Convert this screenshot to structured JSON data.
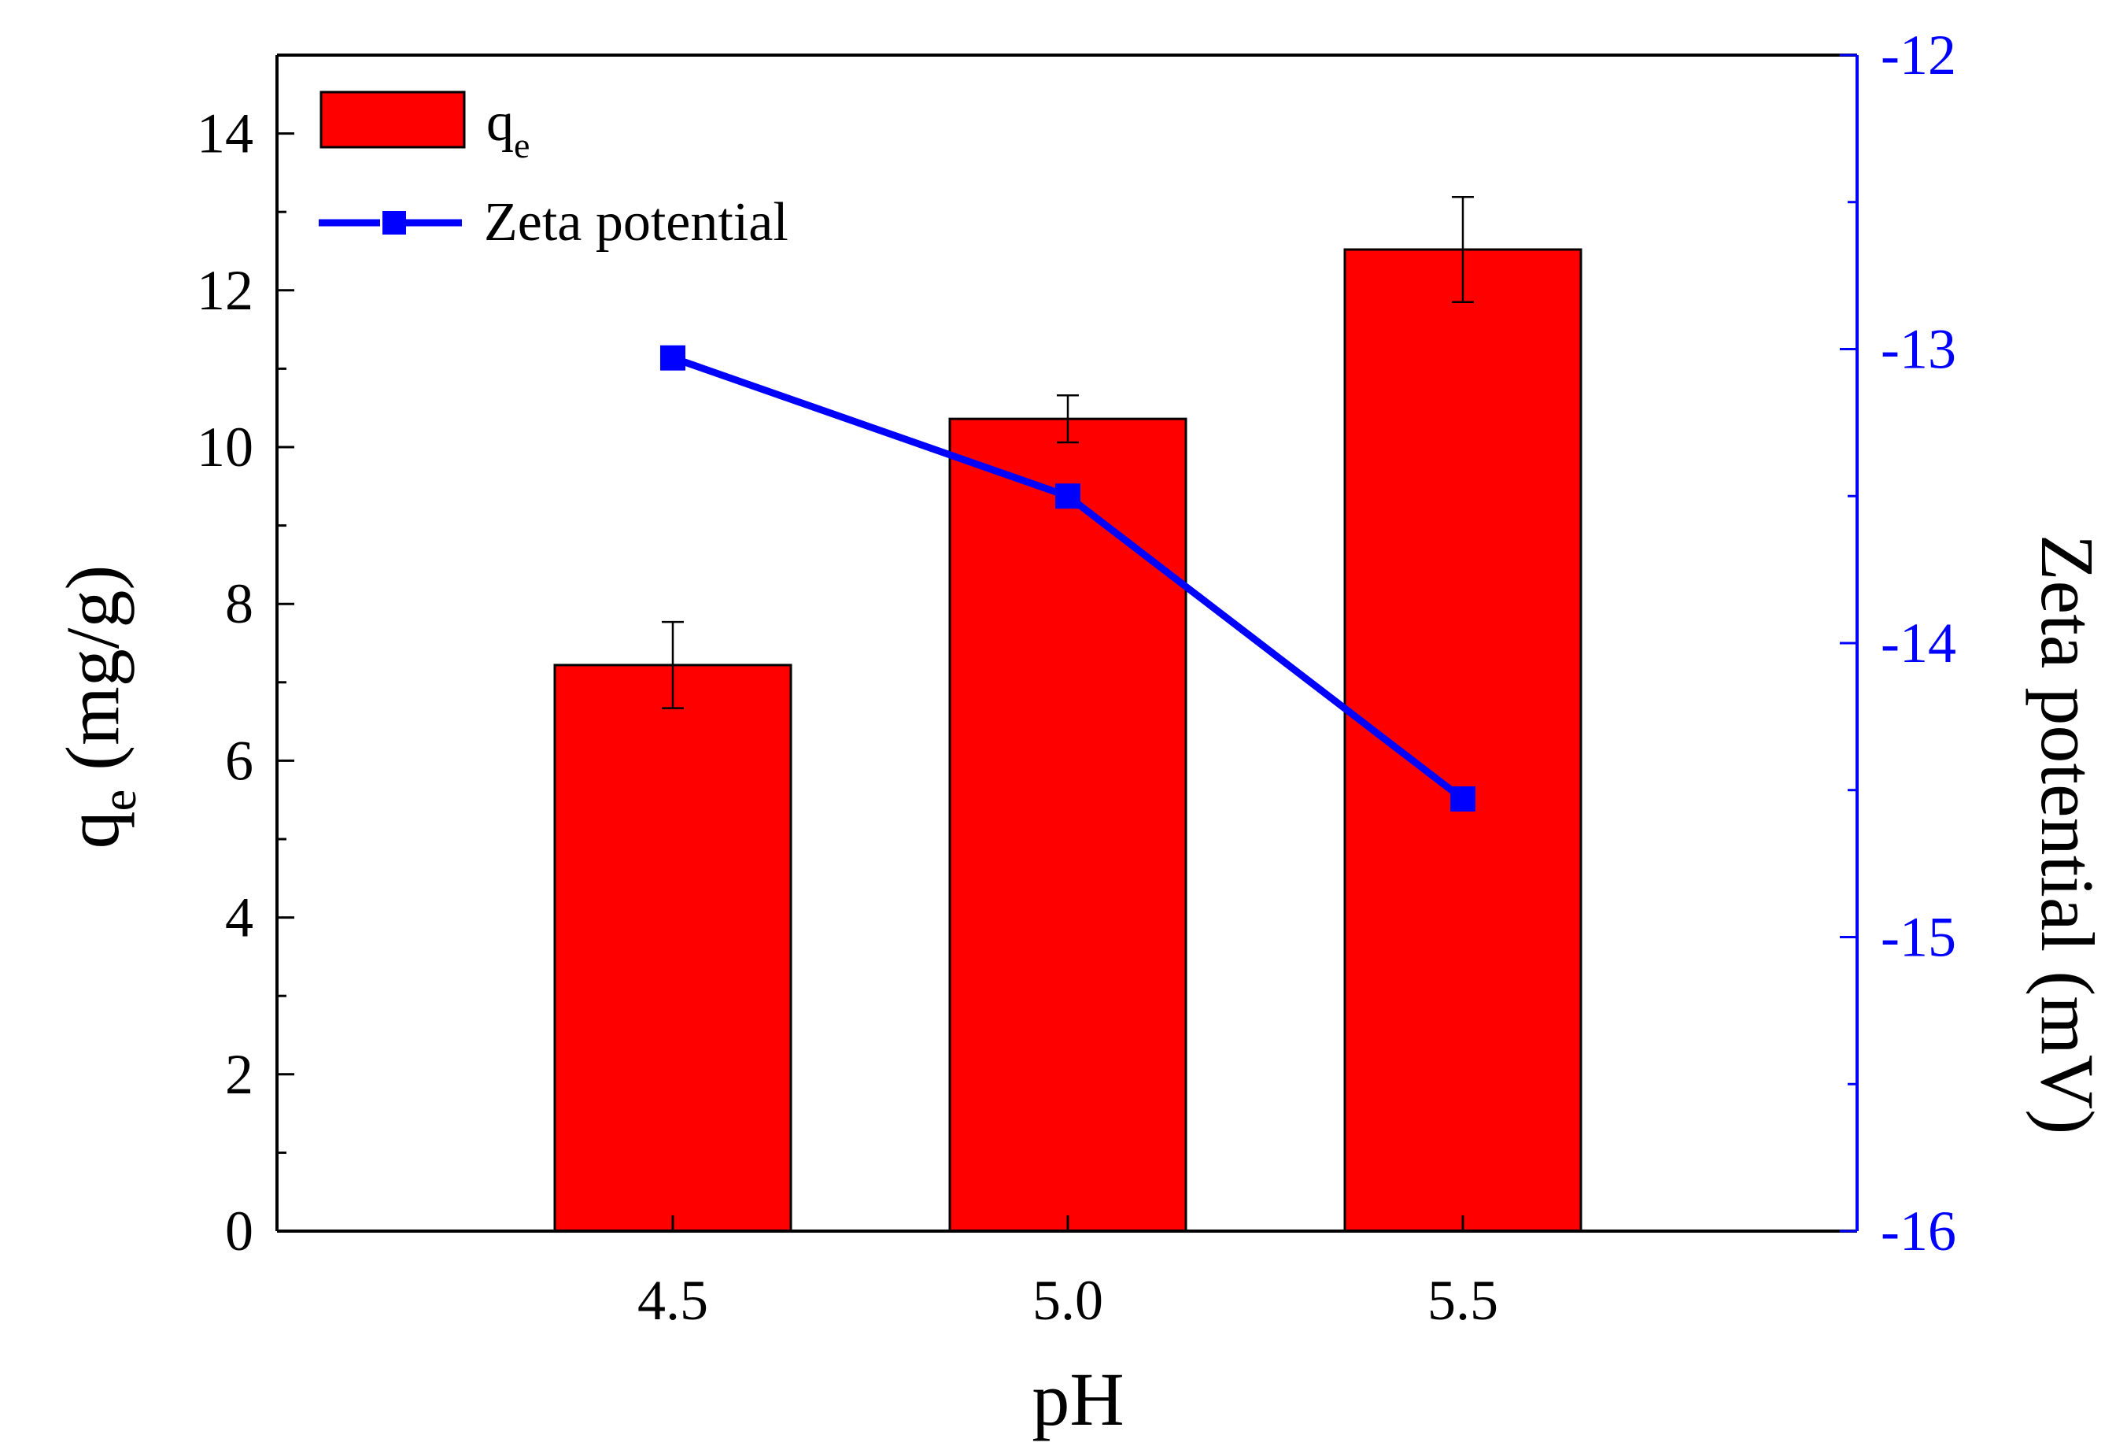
{
  "chart_data": {
    "type": "bar",
    "x_label": "pH",
    "y_label": "q",
    "y_label_sub": "e",
    "y_label_unit": "(mg/g)",
    "y2_label": "Zeta potential (mV)",
    "categories": [
      "4.5",
      "5.0",
      "5.5"
    ],
    "ylim": [
      0,
      15
    ],
    "y_ticks": [
      0,
      2,
      4,
      6,
      8,
      10,
      12,
      14
    ],
    "y_tick_labels": [
      "0",
      "2",
      "4",
      "6",
      "8",
      "10",
      "12",
      "14"
    ],
    "y2lim": [
      -16,
      -12
    ],
    "y2_ticks": [
      -16,
      -15,
      -14,
      -13,
      -12
    ],
    "y2_tick_labels": [
      "-16",
      "-15",
      "-14",
      "-13",
      "-12"
    ],
    "grid": false,
    "legend_position": "top-left",
    "series": [
      {
        "kind": "bar",
        "axis": "left",
        "legend_label": "q",
        "legend_sub": "e",
        "values": [
          7.22,
          10.36,
          12.52
        ],
        "errors": [
          0.55,
          0.3,
          0.67
        ],
        "color": "#ff0000"
      },
      {
        "kind": "line",
        "axis": "right",
        "name": "Zeta potential",
        "values": [
          -13.03,
          -13.5,
          -14.53
        ],
        "color": "#0000ff"
      }
    ]
  }
}
